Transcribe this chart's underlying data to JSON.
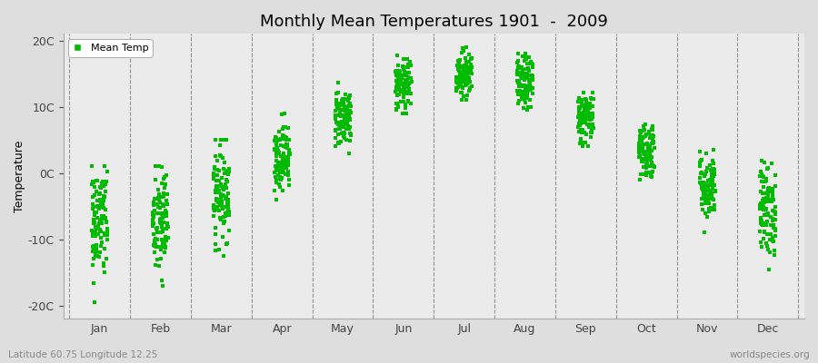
{
  "title": "Monthly Mean Temperatures 1901  -  2009",
  "ylabel": "Temperature",
  "footer_left": "Latitude 60.75 Longitude 12.25",
  "footer_right": "worldspecies.org",
  "legend_label": "Mean Temp",
  "dot_color": "#00BB00",
  "background_color": "#DEDEDE",
  "plot_bg_color": "#EBEBEB",
  "ylim": [
    -22,
    21
  ],
  "yticks": [
    -20,
    -10,
    0,
    10,
    20
  ],
  "ytick_labels": [
    "-20C",
    "-10C",
    "0C",
    "10C",
    "20C"
  ],
  "months": [
    "Jan",
    "Feb",
    "Mar",
    "Apr",
    "May",
    "Jun",
    "Jul",
    "Aug",
    "Sep",
    "Oct",
    "Nov",
    "Dec"
  ],
  "n_years": 109,
  "monthly_means": [
    -7.5,
    -7.5,
    -3.0,
    2.5,
    8.5,
    13.0,
    15.0,
    13.5,
    8.5,
    3.5,
    -2.0,
    -5.5
  ],
  "monthly_stds": [
    4.5,
    4.5,
    3.5,
    2.5,
    2.2,
    2.0,
    1.8,
    2.0,
    2.0,
    2.2,
    2.5,
    3.5
  ],
  "monthly_mins": [
    -20,
    -19,
    -13,
    -4,
    3,
    9,
    11,
    9,
    4,
    -1,
    -9,
    -15
  ],
  "monthly_maxs": [
    1,
    1,
    5,
    9,
    14,
    19,
    19,
    18,
    13,
    10,
    5,
    2
  ],
  "marker_size": 5,
  "jitter_scale": 0.13
}
